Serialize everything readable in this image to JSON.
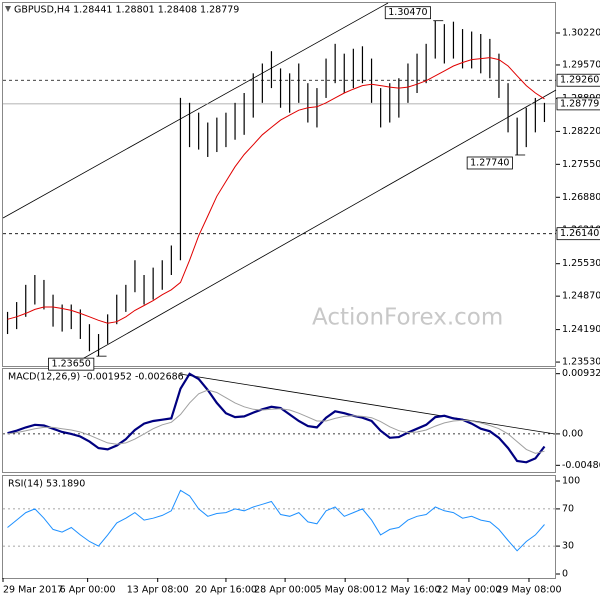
{
  "chart_data": [
    {
      "type": "range-bar",
      "title": "GBPUSD,H4  1.28441 1.28801 1.28408 1.28779",
      "color": "#000000",
      "high": [
        1.2455,
        1.2475,
        1.251,
        1.253,
        1.252,
        1.249,
        1.247,
        1.247,
        1.246,
        1.243,
        1.241,
        1.245,
        1.249,
        1.251,
        1.256,
        1.253,
        1.2545,
        1.256,
        1.259,
        1.289,
        1.288,
        1.286,
        1.284,
        1.285,
        1.286,
        1.288,
        1.29,
        1.294,
        1.296,
        1.2985,
        1.295,
        1.294,
        1.296,
        1.292,
        1.291,
        1.297,
        1.3,
        1.298,
        1.299,
        1.2995,
        1.297,
        1.291,
        1.292,
        1.293,
        1.296,
        1.298,
        1.3,
        1.3047,
        1.304,
        1.3045,
        1.303,
        1.3025,
        1.302,
        1.301,
        1.298,
        1.292,
        1.285,
        1.287,
        1.289,
        1.288
      ],
      "low": [
        1.241,
        1.242,
        1.2445,
        1.247,
        1.246,
        1.2425,
        1.2415,
        1.242,
        1.24,
        1.2375,
        1.2365,
        1.239,
        1.243,
        1.2455,
        1.2495,
        1.247,
        1.248,
        1.25,
        1.253,
        1.256,
        1.279,
        1.2785,
        1.277,
        1.278,
        1.279,
        1.2805,
        1.2815,
        1.285,
        1.288,
        1.291,
        1.287,
        1.286,
        1.288,
        1.284,
        1.283,
        1.289,
        1.292,
        1.29,
        1.291,
        1.292,
        1.288,
        1.283,
        1.284,
        1.285,
        1.288,
        1.29,
        1.292,
        1.297,
        1.296,
        1.297,
        1.295,
        1.295,
        1.294,
        1.293,
        1.289,
        1.282,
        1.2774,
        1.279,
        1.282,
        1.2841
      ],
      "ma": {
        "color": "#e00000",
        "values": [
          1.244,
          1.2445,
          1.2452,
          1.246,
          1.2465,
          1.2465,
          1.2462,
          1.2458,
          1.2452,
          1.2445,
          1.2438,
          1.2432,
          1.2435,
          1.2445,
          1.2458,
          1.2468,
          1.2478,
          1.249,
          1.25,
          1.2515,
          1.256,
          1.261,
          1.265,
          1.269,
          1.272,
          1.275,
          1.2775,
          1.2795,
          1.2815,
          1.283,
          1.2845,
          1.2855,
          1.2865,
          1.287,
          1.2872,
          1.288,
          1.289,
          1.29,
          1.2908,
          1.2915,
          1.2918,
          1.2915,
          1.2912,
          1.291,
          1.2912,
          1.2918,
          1.2925,
          1.2935,
          1.2945,
          1.2955,
          1.2962,
          1.2968,
          1.297,
          1.2972,
          1.2968,
          1.2955,
          1.2935,
          1.2915,
          1.29,
          1.2888
        ]
      },
      "levels": [
        {
          "value": 1.2926,
          "label": "1.29260"
        },
        {
          "value": 1.2614,
          "label": "1.26140"
        }
      ],
      "current": {
        "value": 1.28779,
        "label": "1.28779"
      },
      "annotations": [
        {
          "value": 1.3047,
          "label": "1.30470"
        },
        {
          "value": 1.2774,
          "label": "1.27740"
        },
        {
          "value": 1.2365,
          "label": "1.23650"
        }
      ],
      "watermark": "ActionForex.com",
      "xlim": [
        0,
        60
      ],
      "ylim": [
        1.2345,
        1.3083
      ],
      "yticks": [
        {
          "value": 1.3022,
          "label": "1.30220"
        },
        {
          "value": 1.2957,
          "label": "1.29570"
        },
        {
          "value": 1.2889,
          "label": "1.28890"
        },
        {
          "value": 1.2822,
          "label": "1.28220"
        },
        {
          "value": 1.2755,
          "label": "1.27550"
        },
        {
          "value": 1.2688,
          "label": "1.26880"
        },
        {
          "value": 1.2621,
          "label": "1.26210"
        },
        {
          "value": 1.2553,
          "label": "1.25530"
        },
        {
          "value": 1.2487,
          "label": "1.24870"
        },
        {
          "value": 1.2419,
          "label": "1.24190"
        },
        {
          "value": 1.2353,
          "label": "1.23530"
        }
      ]
    },
    {
      "type": "macd",
      "title": "MACD(12,26,9) -0.001952 -0.002686",
      "series": [
        {
          "color": "#000080",
          "values": [
            0.0001,
            0.0005,
            0.001,
            0.0014,
            0.0013,
            0.0008,
            0.0003,
            0,
            -0.0004,
            -0.0012,
            -0.0022,
            -0.0024,
            -0.0018,
            -0.0008,
            0.0006,
            0.0016,
            0.002,
            0.0022,
            0.0024,
            0.007,
            0.0093,
            0.0085,
            0.0068,
            0.0048,
            0.0032,
            0.0026,
            0.0027,
            0.0033,
            0.0038,
            0.0042,
            0.004,
            0.003,
            0.002,
            0.0012,
            0.001,
            0.0025,
            0.0035,
            0.0032,
            0.0028,
            0.0025,
            0.002,
            0.0005,
            -0.0006,
            -0.0005,
            0.0002,
            0.0008,
            0.0014,
            0.0026,
            0.0028,
            0.0024,
            0.0022,
            0.0016,
            0.0008,
            0.0004,
            -0.0006,
            -0.0022,
            -0.0042,
            -0.0044,
            -0.0038,
            -0.001952
          ]
        },
        {
          "color": "#a0a0a0",
          "values": [
            0,
            0.0002,
            0.0005,
            0.0008,
            0.001,
            0.001,
            0.0008,
            0.0006,
            0.0003,
            -0.0002,
            -0.0008,
            -0.0014,
            -0.0016,
            -0.0014,
            -0.0008,
            0,
            0.0008,
            0.0014,
            0.0018,
            0.003,
            0.0048,
            0.0062,
            0.0068,
            0.0064,
            0.0056,
            0.0048,
            0.0042,
            0.0038,
            0.0037,
            0.0038,
            0.0039,
            0.0037,
            0.0032,
            0.0026,
            0.002,
            0.002,
            0.0024,
            0.0027,
            0.0028,
            0.0027,
            0.0025,
            0.0019,
            0.0011,
            0.0005,
            0.0002,
            0.0003,
            0.0006,
            0.0012,
            0.0017,
            0.002,
            0.0021,
            0.002,
            0.0017,
            0.0013,
            0.0008,
            0,
            -0.0012,
            -0.0024,
            -0.003,
            -0.002686
          ]
        }
      ],
      "xlim": [
        0,
        60
      ],
      "ylim": [
        -0.0059,
        0.0102
      ],
      "yticks": [
        0.009321,
        {
          "value": 0,
          "label": "0.00"
        },
        -0.004866
      ]
    },
    {
      "type": "rsi",
      "title": "RSI(14) 53.1890",
      "color": "#1e90ff",
      "values": [
        50,
        58,
        66,
        70,
        60,
        48,
        45,
        50,
        42,
        35,
        30,
        42,
        55,
        60,
        66,
        58,
        60,
        63,
        68,
        90,
        84,
        70,
        62,
        65,
        66,
        70,
        68,
        72,
        75,
        78,
        64,
        62,
        66,
        56,
        54,
        68,
        72,
        62,
        66,
        70,
        58,
        42,
        48,
        50,
        58,
        62,
        64,
        72,
        68,
        66,
        60,
        62,
        58,
        56,
        48,
        36,
        25,
        35,
        42,
        53.189
      ],
      "xlim": [
        0,
        60
      ],
      "ylim": [
        0,
        100
      ],
      "yticks": [
        100,
        70,
        30,
        0
      ],
      "levels": [
        70,
        30
      ],
      "xticks": [
        {
          "value": 0,
          "label": "29 Mar 2017"
        },
        {
          "value": 9.3,
          "label": "6 Apr 00:00"
        },
        {
          "value": 17,
          "label": "13 Apr 08:00"
        },
        {
          "value": 24.5,
          "label": "20 Apr 16:00"
        },
        {
          "value": 31,
          "label": "28 Apr 00:00"
        },
        {
          "value": 37.6,
          "label": "5 May 08:00"
        },
        {
          "value": 44.5,
          "label": "12 May 16:00"
        },
        {
          "value": 51.2,
          "label": "22 May 00:00"
        },
        {
          "value": 57.8,
          "label": "29 May 08:00"
        }
      ]
    }
  ]
}
